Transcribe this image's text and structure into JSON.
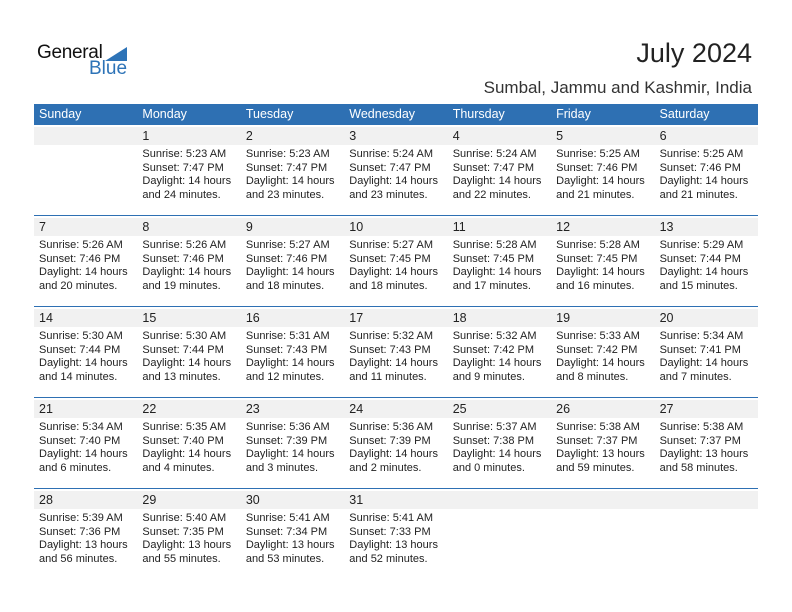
{
  "logo": {
    "text1": "General",
    "text2": "Blue"
  },
  "title": "July 2024",
  "location": "Sumbal, Jammu and Kashmir, India",
  "weekdays": [
    "Sunday",
    "Monday",
    "Tuesday",
    "Wednesday",
    "Thursday",
    "Friday",
    "Saturday"
  ],
  "first_weekday_index": 1,
  "days": [
    [
      "1",
      "Sunrise: 5:23 AM",
      "Sunset: 7:47 PM",
      "Daylight: 14 hours",
      "and 24 minutes."
    ],
    [
      "2",
      "Sunrise: 5:23 AM",
      "Sunset: 7:47 PM",
      "Daylight: 14 hours",
      "and 23 minutes."
    ],
    [
      "3",
      "Sunrise: 5:24 AM",
      "Sunset: 7:47 PM",
      "Daylight: 14 hours",
      "and 23 minutes."
    ],
    [
      "4",
      "Sunrise: 5:24 AM",
      "Sunset: 7:47 PM",
      "Daylight: 14 hours",
      "and 22 minutes."
    ],
    [
      "5",
      "Sunrise: 5:25 AM",
      "Sunset: 7:46 PM",
      "Daylight: 14 hours",
      "and 21 minutes."
    ],
    [
      "6",
      "Sunrise: 5:25 AM",
      "Sunset: 7:46 PM",
      "Daylight: 14 hours",
      "and 21 minutes."
    ],
    [
      "7",
      "Sunrise: 5:26 AM",
      "Sunset: 7:46 PM",
      "Daylight: 14 hours",
      "and 20 minutes."
    ],
    [
      "8",
      "Sunrise: 5:26 AM",
      "Sunset: 7:46 PM",
      "Daylight: 14 hours",
      "and 19 minutes."
    ],
    [
      "9",
      "Sunrise: 5:27 AM",
      "Sunset: 7:46 PM",
      "Daylight: 14 hours",
      "and 18 minutes."
    ],
    [
      "10",
      "Sunrise: 5:27 AM",
      "Sunset: 7:45 PM",
      "Daylight: 14 hours",
      "and 18 minutes."
    ],
    [
      "11",
      "Sunrise: 5:28 AM",
      "Sunset: 7:45 PM",
      "Daylight: 14 hours",
      "and 17 minutes."
    ],
    [
      "12",
      "Sunrise: 5:28 AM",
      "Sunset: 7:45 PM",
      "Daylight: 14 hours",
      "and 16 minutes."
    ],
    [
      "13",
      "Sunrise: 5:29 AM",
      "Sunset: 7:44 PM",
      "Daylight: 14 hours",
      "and 15 minutes."
    ],
    [
      "14",
      "Sunrise: 5:30 AM",
      "Sunset: 7:44 PM",
      "Daylight: 14 hours",
      "and 14 minutes."
    ],
    [
      "15",
      "Sunrise: 5:30 AM",
      "Sunset: 7:44 PM",
      "Daylight: 14 hours",
      "and 13 minutes."
    ],
    [
      "16",
      "Sunrise: 5:31 AM",
      "Sunset: 7:43 PM",
      "Daylight: 14 hours",
      "and 12 minutes."
    ],
    [
      "17",
      "Sunrise: 5:32 AM",
      "Sunset: 7:43 PM",
      "Daylight: 14 hours",
      "and 11 minutes."
    ],
    [
      "18",
      "Sunrise: 5:32 AM",
      "Sunset: 7:42 PM",
      "Daylight: 14 hours",
      "and 9 minutes."
    ],
    [
      "19",
      "Sunrise: 5:33 AM",
      "Sunset: 7:42 PM",
      "Daylight: 14 hours",
      "and 8 minutes."
    ],
    [
      "20",
      "Sunrise: 5:34 AM",
      "Sunset: 7:41 PM",
      "Daylight: 14 hours",
      "and 7 minutes."
    ],
    [
      "21",
      "Sunrise: 5:34 AM",
      "Sunset: 7:40 PM",
      "Daylight: 14 hours",
      "and 6 minutes."
    ],
    [
      "22",
      "Sunrise: 5:35 AM",
      "Sunset: 7:40 PM",
      "Daylight: 14 hours",
      "and 4 minutes."
    ],
    [
      "23",
      "Sunrise: 5:36 AM",
      "Sunset: 7:39 PM",
      "Daylight: 14 hours",
      "and 3 minutes."
    ],
    [
      "24",
      "Sunrise: 5:36 AM",
      "Sunset: 7:39 PM",
      "Daylight: 14 hours",
      "and 2 minutes."
    ],
    [
      "25",
      "Sunrise: 5:37 AM",
      "Sunset: 7:38 PM",
      "Daylight: 14 hours",
      "and 0 minutes."
    ],
    [
      "26",
      "Sunrise: 5:38 AM",
      "Sunset: 7:37 PM",
      "Daylight: 13 hours",
      "and 59 minutes."
    ],
    [
      "27",
      "Sunrise: 5:38 AM",
      "Sunset: 7:37 PM",
      "Daylight: 13 hours",
      "and 58 minutes."
    ],
    [
      "28",
      "Sunrise: 5:39 AM",
      "Sunset: 7:36 PM",
      "Daylight: 13 hours",
      "and 56 minutes."
    ],
    [
      "29",
      "Sunrise: 5:40 AM",
      "Sunset: 7:35 PM",
      "Daylight: 13 hours",
      "and 55 minutes."
    ],
    [
      "30",
      "Sunrise: 5:41 AM",
      "Sunset: 7:34 PM",
      "Daylight: 13 hours",
      "and 53 minutes."
    ],
    [
      "31",
      "Sunrise: 5:41 AM",
      "Sunset: 7:33 PM",
      "Daylight: 13 hours",
      "and 52 minutes."
    ]
  ],
  "colors": {
    "accent": "#2e70b3",
    "band": "#f1f1f1"
  }
}
